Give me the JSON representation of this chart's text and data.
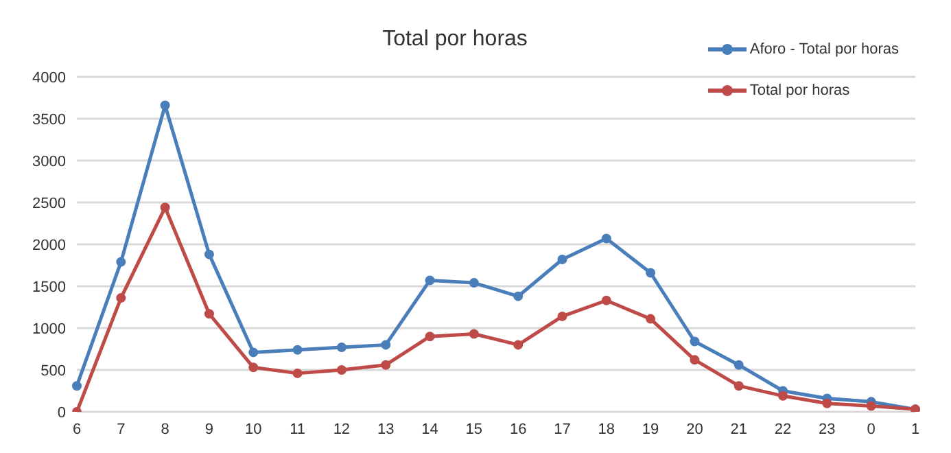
{
  "chart_data": {
    "type": "line",
    "title": "Total por horas",
    "categories": [
      "6",
      "7",
      "8",
      "9",
      "10",
      "11",
      "12",
      "13",
      "14",
      "15",
      "16",
      "17",
      "18",
      "19",
      "20",
      "21",
      "22",
      "23",
      "0",
      "1"
    ],
    "series": [
      {
        "name": "Aforo - Total por horas",
        "color": "#4a7ebb",
        "values": [
          310,
          1790,
          3660,
          1880,
          710,
          740,
          770,
          800,
          1570,
          1540,
          1380,
          1820,
          2070,
          1660,
          840,
          560,
          250,
          160,
          120,
          30
        ]
      },
      {
        "name": "Total por horas",
        "color": "#be4b48",
        "values": [
          0,
          1360,
          2440,
          1170,
          530,
          460,
          500,
          560,
          900,
          930,
          800,
          1140,
          1330,
          1110,
          620,
          310,
          190,
          100,
          70,
          30
        ]
      }
    ],
    "ylim": [
      0,
      4000
    ],
    "yticks": [
      0,
      500,
      1000,
      1500,
      2000,
      2500,
      3000,
      3500,
      4000
    ],
    "grid": "y",
    "legend": "top right",
    "marker": "circle",
    "line_style": "solid"
  }
}
